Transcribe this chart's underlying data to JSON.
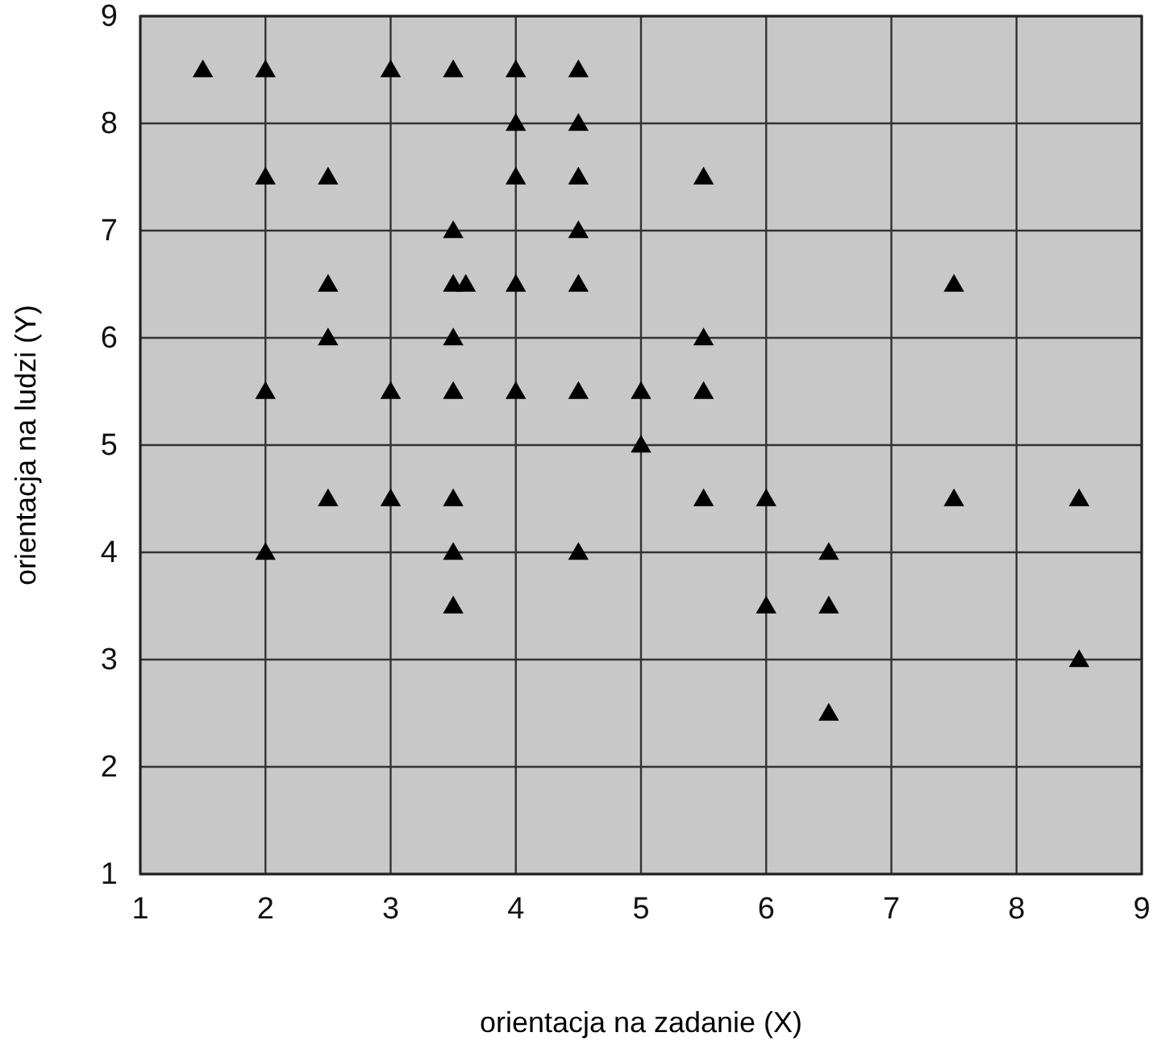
{
  "chart_data": {
    "type": "scatter",
    "xlabel": "orientacja na zadanie (X)",
    "ylabel": "orientacja na ludzi (Y)",
    "xlim": [
      1,
      9
    ],
    "ylim": [
      1,
      9
    ],
    "xticks": [
      1,
      2,
      3,
      4,
      5,
      6,
      7,
      8,
      9
    ],
    "yticks": [
      1,
      2,
      3,
      4,
      5,
      6,
      7,
      8,
      9
    ],
    "grid": true,
    "marker": "triangle",
    "series": [
      {
        "color": "#000000",
        "x": [
          1.5,
          2,
          3,
          3.5,
          4,
          4.5,
          4,
          4.5,
          2,
          2.5,
          4,
          4.5,
          5.5,
          3.5,
          4.5,
          2.5,
          3.5,
          3.6,
          4,
          4.5,
          7.5,
          2.5,
          3.5,
          5.5,
          2,
          3,
          3.5,
          4,
          4.5,
          5,
          5.5,
          5,
          2.5,
          3,
          3.5,
          5.5,
          6,
          7.5,
          8.5,
          2,
          3.5,
          4.5,
          6.5,
          3.5,
          6,
          6.5,
          8.5,
          6.5
        ],
        "values": [
          8.5,
          8.5,
          8.5,
          8.5,
          8.5,
          8.5,
          8,
          8,
          7.5,
          7.5,
          7.5,
          7.5,
          7.5,
          7,
          7,
          6.5,
          6.5,
          6.5,
          6.5,
          6.5,
          6.5,
          6,
          6,
          6,
          5.5,
          5.5,
          5.5,
          5.5,
          5.5,
          5.5,
          5.5,
          5,
          4.5,
          4.5,
          4.5,
          4.5,
          4.5,
          4.5,
          4.5,
          4,
          4,
          4,
          4,
          3.5,
          3.5,
          3.5,
          3,
          2.5
        ]
      }
    ]
  }
}
